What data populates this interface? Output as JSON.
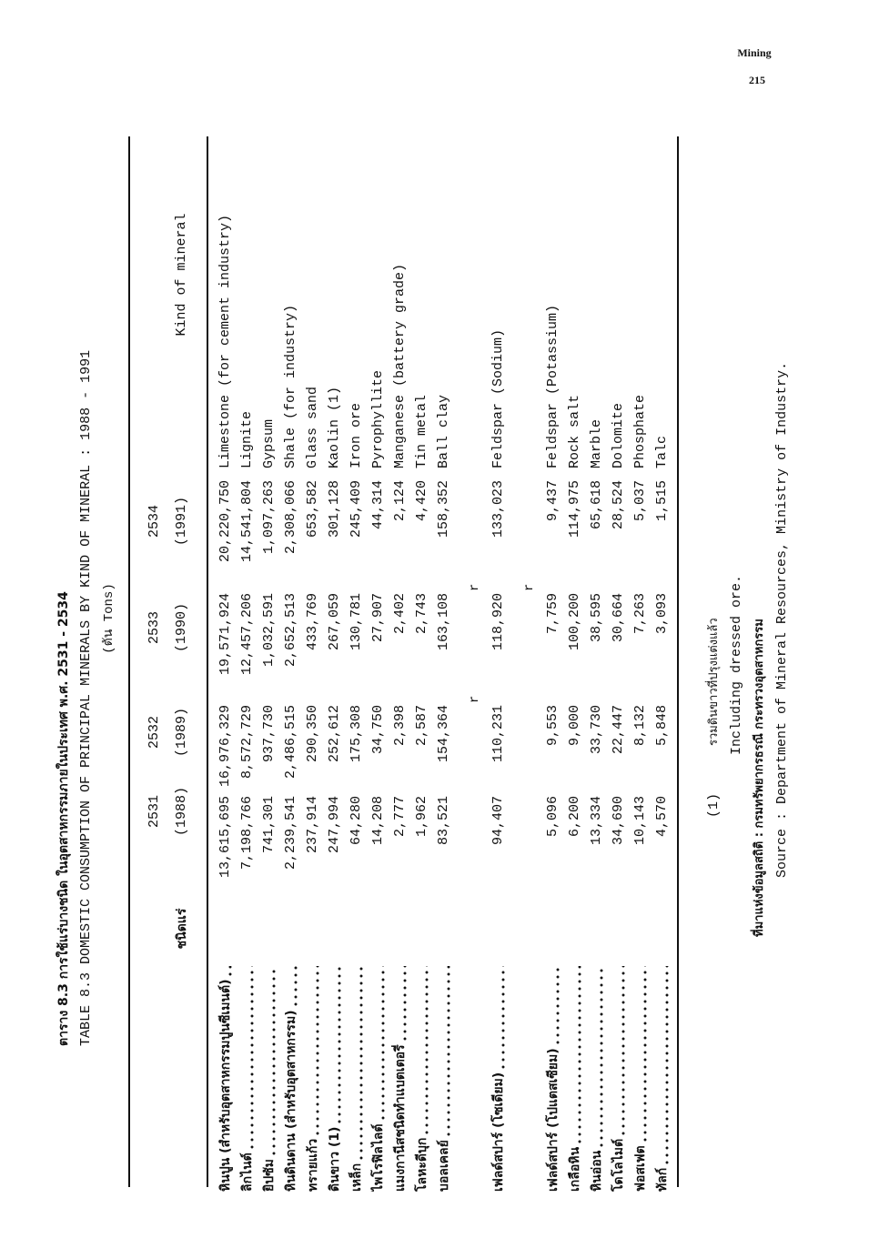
{
  "page_header": {
    "section": "Mining",
    "page_number": "215"
  },
  "title": {
    "thai": "ตาราง 8.3 การใช้แร่บางชนิด ในอุตสาหกรรมภายในประเทศ พ.ศ. 2531 - 2534",
    "english": "TABLE 8.3 DOMESTIC CONSUMPTION OF PRINCIPAL MINERALS BY KIND OF MINERAL : 1988 - 1991",
    "unit": "(ตัน Tons)"
  },
  "table": {
    "header": {
      "thai_label": "ชนิดแร่",
      "english_label": "Kind of mineral",
      "years": [
        {
          "be": "2531",
          "ce": "(1988)"
        },
        {
          "be": "2532",
          "ce": "(1989)"
        },
        {
          "be": "2533",
          "ce": "(1990)"
        },
        {
          "be": "2534",
          "ce": "(1991)"
        }
      ]
    },
    "revised_mark": "r",
    "rows": [
      {
        "thai": "หินปูน (สำหรับอุตสาหกรรมปูนซีเมนต์)",
        "values": [
          "13,615,695",
          "16,976,329",
          "19,571,924",
          "20,220,750"
        ],
        "english": "Limestone (for cement industry)"
      },
      {
        "thai": "ลิกไนต์",
        "values": [
          "7,198,766",
          "8,572,729",
          "12,457,206",
          "14,541,804"
        ],
        "english": "Lignite"
      },
      {
        "thai": "ยิปซัม",
        "values": [
          "741,301",
          "937,730",
          "1,032,591",
          "1,097,263"
        ],
        "english": "Gypsum"
      },
      {
        "thai": "หินดินดาน (สำหรับอุตสาหกรรม)",
        "values": [
          "2,239,541",
          "2,486,515",
          "2,652,513",
          "2,308,066"
        ],
        "english": "Shale (for industry)"
      },
      {
        "thai": "ทรายแก้ว",
        "values": [
          "237,914",
          "290,350",
          "433,769",
          "653,582"
        ],
        "english": "Glass sand"
      },
      {
        "thai": "ดินขาว (1)",
        "values": [
          "247,994",
          "252,612",
          "267,059",
          "301,128"
        ],
        "english": "Kaolin (1)"
      },
      {
        "thai": "เหล็ก",
        "values": [
          "64,280",
          "175,308",
          "130,781",
          "245,409"
        ],
        "english": "Iron ore"
      },
      {
        "thai": "ไพโรฟิลไลต์",
        "values": [
          "14,208",
          "34,750",
          "27,907",
          "44,314"
        ],
        "english": "Pyrophyllite"
      },
      {
        "thai": "แมงกานีสชนิดทำแบตเตอรี่",
        "values": [
          "2,777",
          "2,398",
          "2,402",
          "2,124"
        ],
        "english": "Manganese (battery grade)"
      },
      {
        "thai": "โลหะดีบุก",
        "values": [
          "1,962",
          "2,587",
          "2,743",
          "4,420"
        ],
        "english": "Tin metal"
      },
      {
        "thai": "บอลเคลย์",
        "values": [
          "83,521",
          "154,364",
          "163,108",
          "158,352"
        ],
        "english": "Ball clay",
        "revised": [
          false,
          true,
          true,
          false
        ]
      },
      {
        "thai": "เฟลด์สปาร์ (โซเดียม)",
        "values": [
          "94,407",
          "110,231",
          "118,920",
          "133,023"
        ],
        "english": "Feldspar (Sodium)",
        "revised": [
          false,
          false,
          true,
          false
        ]
      },
      {
        "thai": "เฟลด์สปาร์ (โปแตสเซียม)",
        "values": [
          "5,096",
          "9,553",
          "7,759",
          "9,437"
        ],
        "english": "Feldspar (Potassium)"
      },
      {
        "thai": "เกลือหิน",
        "values": [
          "6,200",
          "9,000",
          "100,200",
          "114,975"
        ],
        "english": "Rock salt"
      },
      {
        "thai": "หินอ่อน",
        "values": [
          "13,334",
          "33,730",
          "38,595",
          "65,618"
        ],
        "english": "Marble"
      },
      {
        "thai": "โดโลไมต์",
        "values": [
          "34,690",
          "22,447",
          "30,664",
          "28,524"
        ],
        "english": "Dolomite"
      },
      {
        "thai": "ฟอสเฟต",
        "values": [
          "10,143",
          "8,132",
          "7,263",
          "5,037"
        ],
        "english": "Phosphate"
      },
      {
        "thai": "ทัลก์",
        "values": [
          "4,570",
          "5,848",
          "3,093",
          "1,515"
        ],
        "english": "Talc"
      }
    ]
  },
  "footnotes": {
    "marker": "(1)",
    "thai_note": "รวมดินขาวที่ปรุงแต่งแล้ว",
    "english_note": "Including dressed ore.",
    "source_thai": "ที่มาแห่งข้อมูลสถิติ : กรมทรัพยากรธรณี กระทรวงอุตสาหกรรม",
    "source_english": "Source : Department of Mineral Resources, Ministry of Industry."
  }
}
